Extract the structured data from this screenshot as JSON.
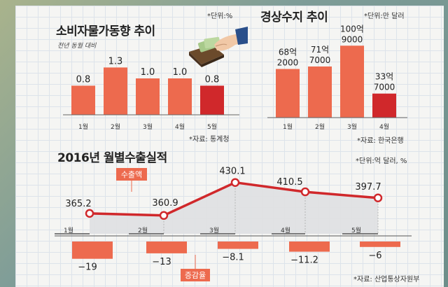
{
  "chart_data": [
    {
      "type": "bar",
      "title": "소비자물가동향 추이",
      "subtitle": "전년 동월 대비",
      "unit": "*단위:%",
      "source": "*자료: 통계청",
      "categories": [
        "1월",
        "2월",
        "3월",
        "4월",
        "5월"
      ],
      "values": [
        0.8,
        1.3,
        1.0,
        1.0,
        0.8
      ],
      "value_labels": [
        "0.8",
        "1.3",
        "1.0",
        "1.0",
        "0.8"
      ],
      "ylim": [
        0,
        1.5
      ],
      "colors": {
        "normal": "#ed6a4e",
        "highlight": "#d0282b"
      }
    },
    {
      "type": "bar",
      "title": "경상수지 추이",
      "unit": "*단위:만 달러",
      "source": "*자료: 한국은행",
      "categories": [
        "1월",
        "2월",
        "3월",
        "4월"
      ],
      "values": [
        682000,
        717000,
        1009000,
        337000
      ],
      "value_labels": [
        [
          "68억",
          "2000"
        ],
        [
          "71억",
          "7000"
        ],
        [
          "100억",
          "9000"
        ],
        [
          "33억",
          "7000"
        ]
      ],
      "ylim": [
        0,
        1100000
      ],
      "colors": {
        "normal": "#ed6a4e",
        "highlight": "#d0282b"
      }
    },
    {
      "type": "line",
      "title": "2016년 월별수출실적",
      "unit": "*단위:억 달러, %",
      "source": "*자료: 산업통상자원부",
      "categories": [
        "1월",
        "2월",
        "3월",
        "4월",
        "5월"
      ],
      "series": [
        {
          "name": "수출액",
          "values": [
            365.2,
            360.9,
            430.1,
            410.5,
            397.7
          ],
          "labels": [
            "365.2",
            "360.9",
            "430.1",
            "410.5",
            "397.7"
          ]
        },
        {
          "name": "증감율",
          "type": "bar",
          "values": [
            -19,
            -13,
            -8.1,
            -11.2,
            -6
          ],
          "labels": [
            "−19",
            "−13",
            "−8.1",
            "−11.2",
            "−6"
          ]
        }
      ],
      "colors": {
        "line": "#d0282b",
        "area": "#dfe0e2",
        "bars": "#ed6a4e",
        "tag": "#ed6a4e"
      }
    }
  ]
}
